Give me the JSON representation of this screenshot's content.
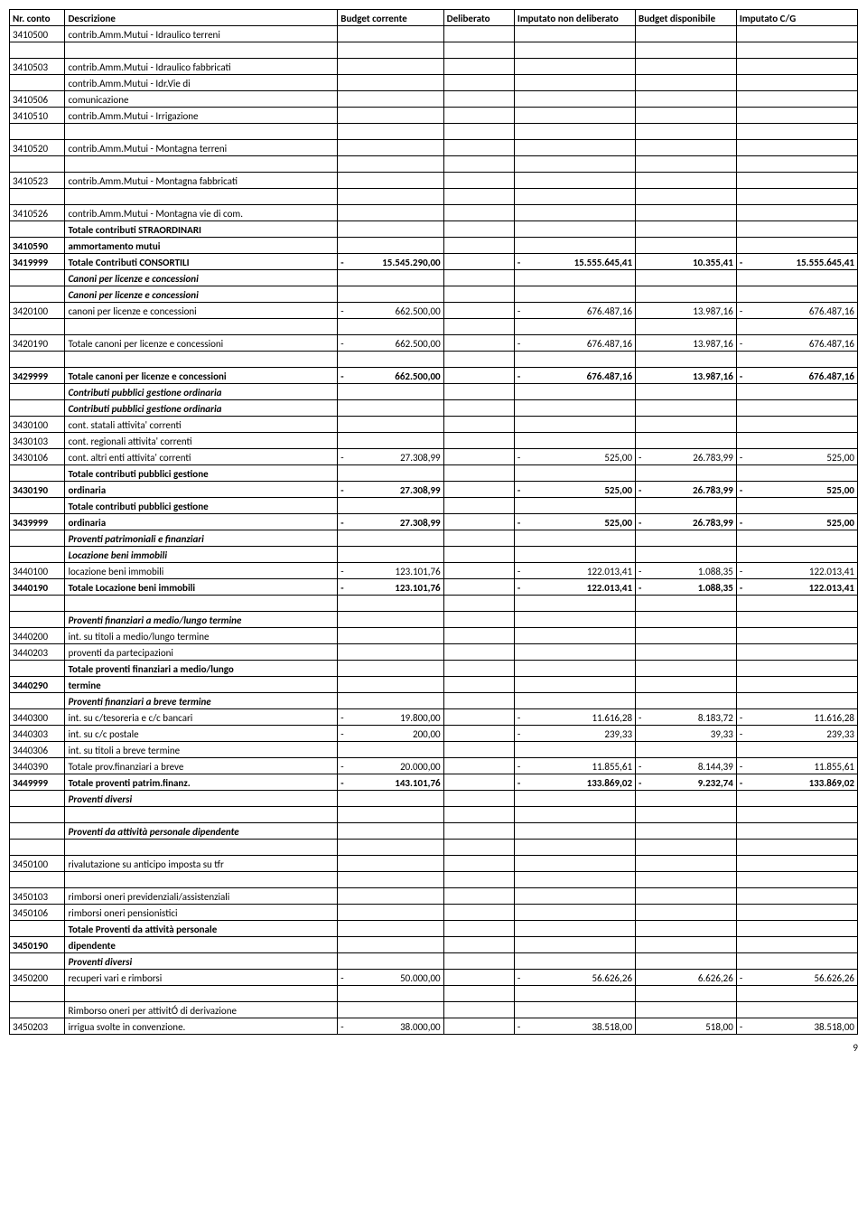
{
  "header": {
    "nrConto": "Nr. conto",
    "descrizione": "Descrizione",
    "budgetCorrente": "Budget corrente",
    "deliberato": "Deliberato",
    "imputatoNon": "Imputato non deliberato",
    "budgetDisp": "Budget disponibile",
    "imputatoCG": "Imputato C/G"
  },
  "pageNumber": "9",
  "rows": [
    {
      "nr": "3410500",
      "desc": "contrib.Amm.Mutui - Idraulico terreni",
      "cls": ""
    },
    {
      "spacer": true
    },
    {
      "nr": "3410503",
      "desc": "contrib.Amm.Mutui - Idraulico fabbricati",
      "cls": ""
    },
    {
      "nr": "",
      "desc": "contrib.Amm.Mutui - Idr.Vie di",
      "cls": ""
    },
    {
      "nr": "3410506",
      "desc": "comunicazione",
      "cls": ""
    },
    {
      "nr": "3410510",
      "desc": "contrib.Amm.Mutui - Irrigazione",
      "cls": ""
    },
    {
      "spacer": true
    },
    {
      "nr": "3410520",
      "desc": "contrib.Amm.Mutui - Montagna terreni",
      "cls": ""
    },
    {
      "spacer": true
    },
    {
      "nr": "3410523",
      "desc": "contrib.Amm.Mutui - Montagna fabbricati",
      "cls": ""
    },
    {
      "spacer": true
    },
    {
      "nr": "3410526",
      "desc": "contrib.Amm.Mutui - Montagna vie di com.",
      "cls": ""
    },
    {
      "nr": "",
      "desc": "Totale contributi STRAORDINARI",
      "cls": "bold"
    },
    {
      "nr": "3410590",
      "desc": "ammortamento mutui",
      "cls": "bold"
    },
    {
      "nr": "3419999",
      "desc": "Totale Contributi CONSORTILI",
      "cls": "bold",
      "bc": {
        "s": "-",
        "v": "15.545.290,00"
      },
      "inon": {
        "s": "-",
        "v": "15.555.645,41"
      },
      "disp": {
        "s": "",
        "v": "10.355,41"
      },
      "cg": {
        "s": "-",
        "v": "15.555.645,41"
      }
    },
    {
      "nr": "",
      "desc": "Canoni per licenze e concessioni",
      "cls": "italic bold"
    },
    {
      "nr": "",
      "desc": "Canoni per licenze e concessioni",
      "cls": "italic bold"
    },
    {
      "nr": "3420100",
      "desc": "canoni per licenze e concessioni",
      "cls": "",
      "bc": {
        "s": "-",
        "v": "662.500,00"
      },
      "inon": {
        "s": "-",
        "v": "676.487,16"
      },
      "disp": {
        "s": "",
        "v": "13.987,16"
      },
      "cg": {
        "s": "-",
        "v": "676.487,16"
      }
    },
    {
      "spacer": true
    },
    {
      "nr": "3420190",
      "desc": "Totale canoni per licenze e concessioni",
      "cls": "",
      "bc": {
        "s": "-",
        "v": "662.500,00"
      },
      "inon": {
        "s": "-",
        "v": "676.487,16"
      },
      "disp": {
        "s": "",
        "v": "13.987,16"
      },
      "cg": {
        "s": "-",
        "v": "676.487,16"
      }
    },
    {
      "spacer": true
    },
    {
      "nr": "3429999",
      "desc": "Totale canoni per licenze e concessioni",
      "cls": "bold",
      "bc": {
        "s": "-",
        "v": "662.500,00"
      },
      "inon": {
        "s": "-",
        "v": "676.487,16"
      },
      "disp": {
        "s": "",
        "v": "13.987,16"
      },
      "cg": {
        "s": "-",
        "v": "676.487,16"
      }
    },
    {
      "nr": "",
      "desc": "Contributi pubblici gestione ordinaria",
      "cls": "italic bold"
    },
    {
      "nr": "",
      "desc": "Contributi pubblici gestione ordinaria",
      "cls": "italic bold"
    },
    {
      "nr": "3430100",
      "desc": "cont. statali attivita' correnti",
      "cls": ""
    },
    {
      "nr": "3430103",
      "desc": "cont. regionali attivita' correnti",
      "cls": ""
    },
    {
      "nr": "3430106",
      "desc": "cont. altri enti attivita' correnti",
      "cls": "",
      "bc": {
        "s": "-",
        "v": "27.308,99"
      },
      "inon": {
        "s": "-",
        "v": "525,00"
      },
      "disp": {
        "s": "-",
        "v": "26.783,99"
      },
      "cg": {
        "s": "-",
        "v": "525,00"
      }
    },
    {
      "nr": "",
      "desc": "Totale contributi pubblici gestione",
      "cls": "bold"
    },
    {
      "nr": "3430190",
      "desc": "ordinaria",
      "cls": "bold",
      "bc": {
        "s": "-",
        "v": "27.308,99"
      },
      "inon": {
        "s": "-",
        "v": "525,00"
      },
      "disp": {
        "s": "-",
        "v": "26.783,99"
      },
      "cg": {
        "s": "-",
        "v": "525,00"
      }
    },
    {
      "nr": "",
      "desc": "Totale contributi pubblici gestione",
      "cls": "bold"
    },
    {
      "nr": "3439999",
      "desc": "ordinaria",
      "cls": "bold",
      "bc": {
        "s": "-",
        "v": "27.308,99"
      },
      "inon": {
        "s": "-",
        "v": "525,00"
      },
      "disp": {
        "s": "-",
        "v": "26.783,99"
      },
      "cg": {
        "s": "-",
        "v": "525,00"
      }
    },
    {
      "nr": "",
      "desc": "Proventi patrimoniali e finanziari",
      "cls": "italic bold"
    },
    {
      "nr": "",
      "desc": "Locazione beni immobili",
      "cls": "italic bold"
    },
    {
      "nr": "3440100",
      "desc": "locazione beni immobili",
      "cls": "",
      "bc": {
        "s": "-",
        "v": "123.101,76"
      },
      "inon": {
        "s": "-",
        "v": "122.013,41"
      },
      "disp": {
        "s": "-",
        "v": "1.088,35"
      },
      "cg": {
        "s": "-",
        "v": "122.013,41"
      }
    },
    {
      "nr": "3440190",
      "desc": "Totale Locazione beni immobili",
      "cls": "bold",
      "bc": {
        "s": "-",
        "v": "123.101,76"
      },
      "inon": {
        "s": "-",
        "v": "122.013,41"
      },
      "disp": {
        "s": "-",
        "v": "1.088,35"
      },
      "cg": {
        "s": "-",
        "v": "122.013,41"
      }
    },
    {
      "spacer": true
    },
    {
      "nr": "",
      "desc": "Proventi finanziari a medio/lungo termine",
      "cls": "italic bold"
    },
    {
      "nr": "3440200",
      "desc": "int. su titoli a medio/lungo termine",
      "cls": ""
    },
    {
      "nr": "3440203",
      "desc": "proventi da partecipazioni",
      "cls": ""
    },
    {
      "nr": "",
      "desc": "Totale proventi finanziari a medio/lungo",
      "cls": "bold"
    },
    {
      "nr": "3440290",
      "desc": "termine",
      "cls": "bold"
    },
    {
      "nr": "",
      "desc": "Proventi finanziari a breve termine",
      "cls": "italic bold"
    },
    {
      "nr": "3440300",
      "desc": "int. su c/tesoreria e c/c bancari",
      "cls": "",
      "bc": {
        "s": "-",
        "v": "19.800,00"
      },
      "inon": {
        "s": "-",
        "v": "11.616,28"
      },
      "disp": {
        "s": "-",
        "v": "8.183,72"
      },
      "cg": {
        "s": "-",
        "v": "11.616,28"
      }
    },
    {
      "nr": "3440303",
      "desc": "int. su c/c postale",
      "cls": "",
      "bc": {
        "s": "-",
        "v": "200,00"
      },
      "inon": {
        "s": "-",
        "v": "239,33"
      },
      "disp": {
        "s": "",
        "v": "39,33"
      },
      "cg": {
        "s": "-",
        "v": "239,33"
      }
    },
    {
      "nr": "3440306",
      "desc": "int. su titoli a breve termine",
      "cls": ""
    },
    {
      "nr": "3440390",
      "desc": "Totale prov.finanziari a breve",
      "cls": "",
      "bc": {
        "s": "-",
        "v": "20.000,00"
      },
      "inon": {
        "s": "-",
        "v": "11.855,61"
      },
      "disp": {
        "s": "-",
        "v": "8.144,39"
      },
      "cg": {
        "s": "-",
        "v": "11.855,61"
      }
    },
    {
      "nr": "3449999",
      "desc": "Totale proventi patrim.finanz.",
      "cls": "bold",
      "bc": {
        "s": "-",
        "v": "143.101,76"
      },
      "inon": {
        "s": "-",
        "v": "133.869,02"
      },
      "disp": {
        "s": "-",
        "v": "9.232,74"
      },
      "cg": {
        "s": "-",
        "v": "133.869,02"
      }
    },
    {
      "nr": "",
      "desc": "Proventi diversi",
      "cls": "italic bold"
    },
    {
      "spacer": true
    },
    {
      "nr": "",
      "desc": "Proventi da attività personale dipendente",
      "cls": "italic bold"
    },
    {
      "spacer": true
    },
    {
      "nr": "3450100",
      "desc": "rivalutazione su anticipo imposta su tfr",
      "cls": ""
    },
    {
      "spacer": true
    },
    {
      "nr": "3450103",
      "desc": "rimborsi oneri previdenziali/assistenziali",
      "cls": ""
    },
    {
      "nr": "3450106",
      "desc": "rimborsi oneri pensionistici",
      "cls": ""
    },
    {
      "nr": "",
      "desc": "Totale Proventi da attività personale",
      "cls": "bold"
    },
    {
      "nr": "3450190",
      "desc": "dipendente",
      "cls": "bold"
    },
    {
      "nr": "",
      "desc": "Proventi diversi",
      "cls": "italic bold"
    },
    {
      "nr": "3450200",
      "desc": "recuperi vari e  rimborsi",
      "cls": "",
      "bc": {
        "s": "-",
        "v": "50.000,00"
      },
      "inon": {
        "s": "-",
        "v": "56.626,26"
      },
      "disp": {
        "s": "",
        "v": "6.626,26"
      },
      "cg": {
        "s": "-",
        "v": "56.626,26"
      }
    },
    {
      "spacer": true
    },
    {
      "nr": "",
      "desc": "Rimborso oneri per attivitÓ di derivazione",
      "cls": ""
    },
    {
      "nr": "3450203",
      "desc": "irrigua svolte in convenzione.",
      "cls": "",
      "bc": {
        "s": "-",
        "v": "38.000,00"
      },
      "inon": {
        "s": "-",
        "v": "38.518,00"
      },
      "disp": {
        "s": "",
        "v": "518,00"
      },
      "cg": {
        "s": "-",
        "v": "38.518,00"
      }
    }
  ]
}
